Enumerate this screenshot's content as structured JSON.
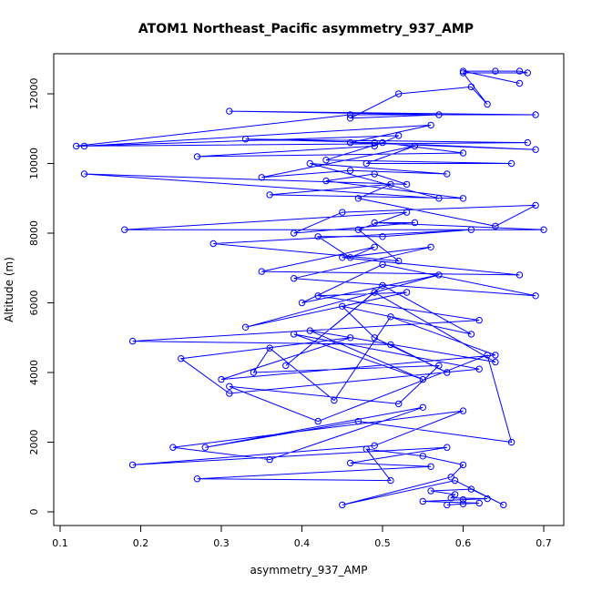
{
  "chart_data": {
    "type": "line",
    "title": "ATOM1 Northeast_Pacific asymmetry_937_AMP",
    "xlabel": "asymmetry_937_AMP",
    "ylabel": "Altitude (m)",
    "xlim": [
      0.1,
      0.7
    ],
    "ylim": [
      0,
      12000
    ],
    "x_ticks": [
      0.1,
      0.2,
      0.3,
      0.4,
      0.5,
      0.6,
      0.7
    ],
    "x_tick_labels": [
      "0.1",
      "0.2",
      "0.3",
      "0.4",
      "0.5",
      "0.6",
      "0.7"
    ],
    "y_ticks": [
      0,
      2000,
      4000,
      6000,
      8000,
      10000,
      12000
    ],
    "y_tick_labels": [
      "0",
      "2000",
      "4000",
      "6000",
      "8000",
      "10000",
      "12000"
    ],
    "series_color": "#0000ff",
    "marker": "open-circle",
    "grid": false,
    "series": [
      {
        "x": [
          0.58,
          0.6,
          0.62,
          0.55,
          0.6,
          0.63,
          0.585,
          0.59,
          0.56,
          0.61,
          0.65,
          0.59,
          0.45,
          0.585,
          0.6,
          0.55,
          0.48,
          0.51,
          0.27,
          0.56,
          0.46,
          0.58,
          0.19,
          0.49,
          0.6,
          0.24,
          0.36,
          0.55,
          0.28,
          0.47,
          0.66,
          0.63,
          0.42,
          0.31,
          0.52,
          0.57,
          0.34,
          0.36,
          0.44,
          0.51,
          0.64,
          0.3,
          0.46,
          0.25,
          0.31,
          0.62,
          0.39,
          0.55,
          0.41,
          0.64,
          0.49,
          0.38,
          0.5,
          0.61,
          0.45,
          0.49,
          0.58,
          0.51,
          0.19,
          0.62,
          0.42,
          0.53,
          0.33,
          0.57,
          0.4,
          0.5,
          0.69,
          0.39,
          0.56,
          0.45,
          0.67,
          0.35,
          0.49,
          0.46,
          0.42,
          0.5,
          0.61,
          0.29,
          0.52,
          0.47,
          0.53,
          0.18,
          0.7,
          0.49,
          0.54,
          0.39,
          0.45,
          0.69,
          0.64,
          0.47,
          0.51,
          0.36,
          0.6,
          0.43,
          0.49,
          0.53,
          0.13,
          0.57,
          0.41,
          0.58,
          0.46,
          0.35,
          0.54,
          0.48,
          0.66,
          0.43,
          0.5,
          0.6,
          0.27,
          0.49,
          0.52,
          0.13,
          0.56,
          0.46,
          0.69,
          0.49,
          0.33,
          0.68,
          0.12,
          0.46,
          0.69,
          0.31,
          0.57,
          0.46,
          0.52,
          0.61,
          0.63,
          0.6,
          0.68,
          0.67,
          0.64,
          0.6,
          0.67
        ],
        "y": [
          200,
          230,
          250,
          300,
          350,
          380,
          400,
          500,
          600,
          650,
          200,
          900,
          200,
          1000,
          1350,
          1600,
          1800,
          900,
          950,
          1300,
          1400,
          1850,
          1350,
          1900,
          2900,
          1850,
          1500,
          3000,
          1850,
          2600,
          2000,
          4500,
          2600,
          3600,
          3100,
          4200,
          4000,
          4700,
          3200,
          5600,
          4500,
          3800,
          5000,
          4400,
          3400,
          4100,
          5100,
          3800,
          5200,
          4300,
          6300,
          4200,
          6500,
          5100,
          5900,
          5000,
          4000,
          4800,
          4900,
          5500,
          6200,
          6300,
          5300,
          6800,
          6000,
          7100,
          6200,
          6700,
          7600,
          7300,
          6800,
          6900,
          7600,
          7300,
          7900,
          7900,
          8100,
          7700,
          7200,
          8100,
          8600,
          8100,
          8100,
          8300,
          8300,
          8000,
          8600,
          8800,
          8200,
          9000,
          9400,
          9100,
          9000,
          9500,
          9700,
          9400,
          9700,
          9000,
          10000,
          9700,
          9800,
          9600,
          10500,
          10000,
          10000,
          10100,
          10600,
          10300,
          10200,
          10500,
          10800,
          10500,
          11100,
          10600,
          10400,
          10600,
          10700,
          10600,
          10500,
          11400,
          11400,
          11500,
          11400,
          11300,
          12000,
          12200,
          11700,
          12600,
          12600,
          12650,
          12650,
          12650,
          12300
        ]
      }
    ]
  }
}
